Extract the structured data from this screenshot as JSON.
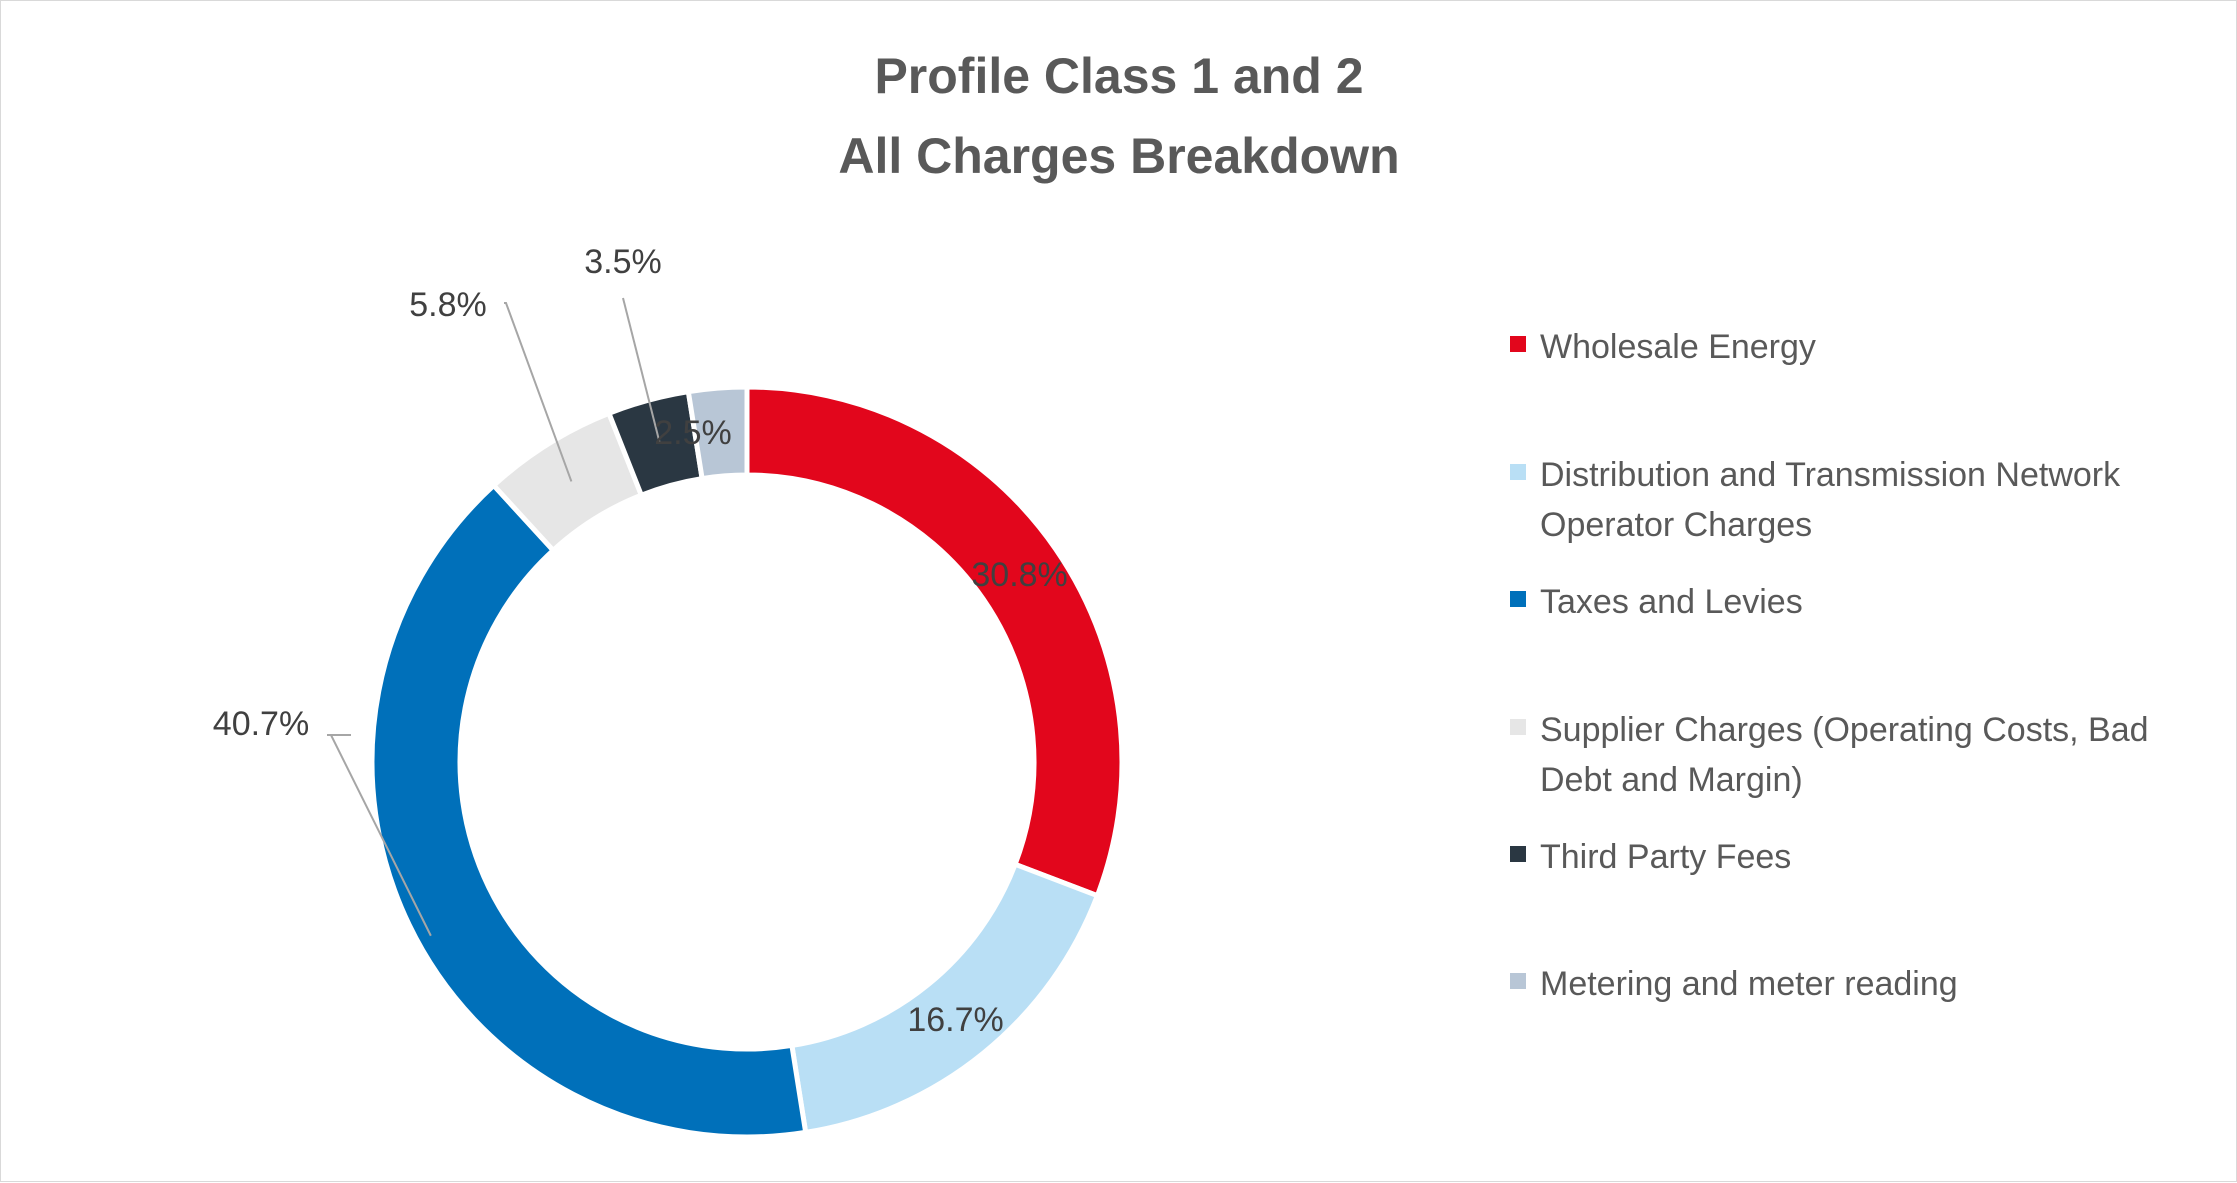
{
  "chart_data": {
    "type": "pie",
    "variant": "donut",
    "title": "Profile Class 1 and 2",
    "subtitle": "All Charges Breakdown",
    "legend_position": "right",
    "slices": [
      {
        "label": "Wholesale Energy",
        "value": 30.8,
        "display": "30.8%",
        "color": "#e2061c"
      },
      {
        "label": "Distribution and Transmission Network Operator Charges",
        "value": 16.7,
        "display": "16.7%",
        "color": "#b9dff5"
      },
      {
        "label": "Taxes and Levies",
        "value": 40.7,
        "display": "40.7%",
        "color": "#0070ba"
      },
      {
        "label": "Supplier Charges (Operating Costs, Bad Debt and Margin)",
        "value": 5.8,
        "display": "5.8%",
        "color": "#e6e6e6"
      },
      {
        "label": "Third Party Fees",
        "value": 3.5,
        "display": "3.5%",
        "color": "#2a3742"
      },
      {
        "label": "Metering and meter reading",
        "value": 2.5,
        "display": "2.5%",
        "color": "#b8c6d6"
      }
    ]
  }
}
